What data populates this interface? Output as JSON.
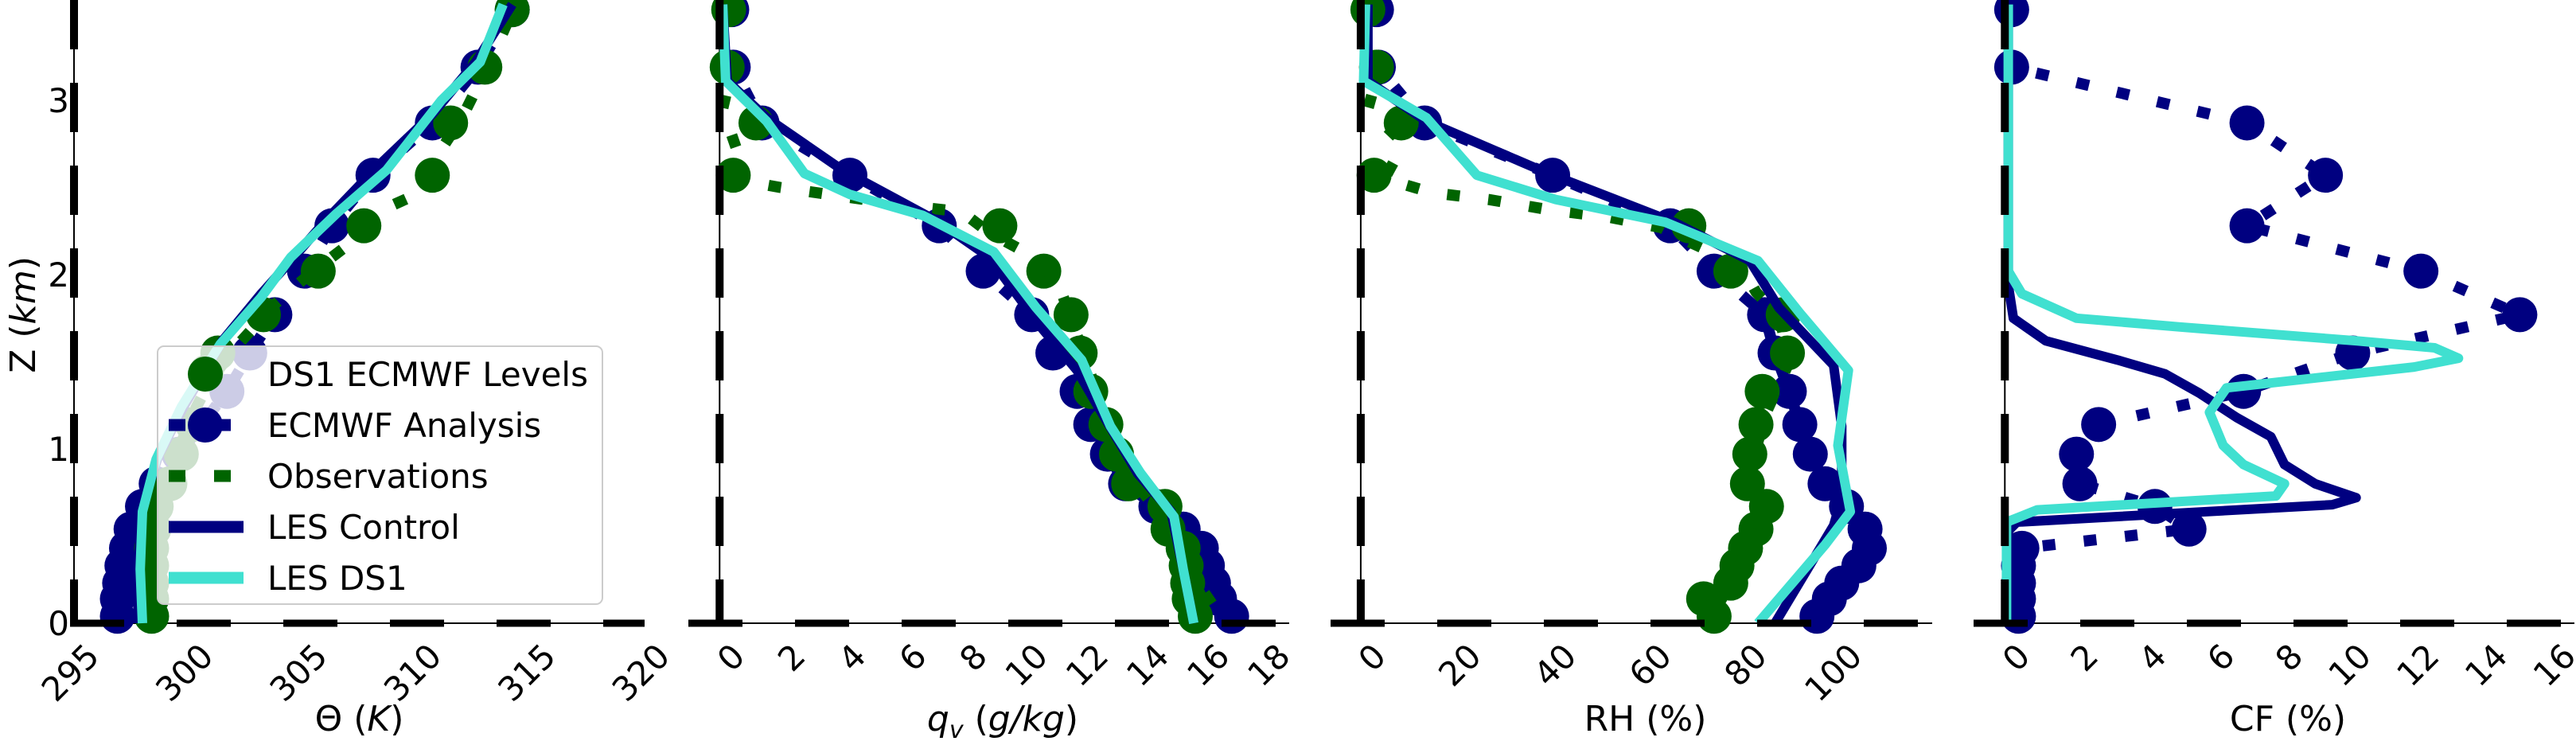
{
  "colors": {
    "ecmwf_analysis": "#000080",
    "ds1_levels": "#006400",
    "observations": "#006400",
    "les_control": "#000080",
    "les_ds1": "#40E0D0",
    "reference_lines": "#000000"
  },
  "legend": {
    "location": "lower-right of first panel",
    "entries": [
      {
        "key": "ds1_levels",
        "label": "DS1 ECMWF Levels"
      },
      {
        "key": "ecmwf_analysis",
        "label": "ECMWF Analysis"
      },
      {
        "key": "observations",
        "label": "Observations"
      },
      {
        "key": "les_control",
        "label": "LES Control"
      },
      {
        "key": "les_ds1",
        "label": "LES DS1"
      }
    ]
  },
  "chart_data": [
    {
      "type": "line",
      "xlabel": {
        "symbol": "Θ",
        "unit": "K",
        "italic_unit": true
      },
      "ylabel": {
        "symbol": "Z",
        "unit": "km",
        "italic_unit": true
      },
      "xlim": [
        295,
        320
      ],
      "ylim": [
        0,
        3.57
      ],
      "xticks": [
        "295",
        "300",
        "305",
        "310",
        "315",
        "320"
      ],
      "yticks": [
        "0",
        "1",
        "2",
        "3"
      ],
      "grid": false,
      "series": {
        "ecmwf_analysis": {
          "z": [
            3.52,
            3.19,
            2.87,
            2.57,
            2.28,
            2.02,
            1.77,
            1.55,
            1.33,
            1.14,
            0.97,
            0.8,
            0.67,
            0.54,
            0.43,
            0.33,
            0.23,
            0.14,
            0.04
          ],
          "x": [
            314.2,
            312.7,
            310.7,
            308.1,
            306.3,
            305.1,
            303.8,
            302.7,
            301.7,
            300.6,
            299.6,
            298.6,
            298.0,
            297.5,
            297.3,
            297.1,
            297.0,
            296.9,
            296.9
          ]
        },
        "ds1_levels": {
          "z": [
            3.52,
            3.19,
            2.87,
            2.57,
            2.28,
            2.02,
            1.77,
            1.55,
            1.44,
            1.14,
            0.97,
            0.8,
            0.67,
            0.54,
            0.43,
            0.33,
            0.23,
            0.14,
            0.04
          ],
          "x": [
            314.2,
            313.0,
            311.5,
            310.7,
            307.7,
            305.7,
            303.3,
            301.3,
            300.8,
            300.2,
            299.7,
            299.2,
            298.6,
            298.5,
            298.4,
            298.4,
            298.4,
            298.4,
            298.4
          ]
        },
        "observations": {
          "z": [
            3.45,
            3.33,
            3.11,
            2.9,
            2.7,
            2.46,
            2.36,
            2.17,
            2.0,
            1.83,
            1.6,
            1.4,
            1.2,
            1.0,
            0.8,
            0.6,
            0.4,
            0.2,
            0.0
          ],
          "x": [
            314.0,
            313.6,
            312.8,
            312.0,
            311.0,
            310.0,
            308.3,
            307.0,
            305.3,
            303.8,
            302.2,
            301.0,
            300.2,
            299.6,
            299.0,
            298.6,
            298.4,
            298.4,
            298.5
          ]
        },
        "les_control": {
          "z": [
            3.55,
            3.22,
            2.92,
            2.62,
            2.32,
            2.08,
            1.89,
            1.62,
            1.24,
            0.96,
            0.67,
            0.3,
            0
          ],
          "x": [
            314.2,
            312.6,
            310.7,
            308.3,
            306.1,
            304.5,
            303.2,
            301.5,
            299.8,
            298.7,
            298.0,
            297.8,
            297.8
          ]
        },
        "les_ds1": {
          "z": [
            3.55,
            3.22,
            3.0,
            2.6,
            2.35,
            2.1,
            1.87,
            1.6,
            1.24,
            0.94,
            0.64,
            0.31,
            0
          ],
          "x": [
            313.8,
            312.8,
            311.1,
            308.7,
            306.5,
            304.5,
            303.2,
            301.4,
            299.7,
            298.6,
            298.0,
            297.9,
            298.0
          ]
        }
      }
    },
    {
      "type": "line",
      "xlabel": {
        "symbol": "q",
        "subscript": "v",
        "unit": "g/kg",
        "italic_unit": true
      },
      "xlim": [
        -0.9,
        18.8
      ],
      "ylim": [
        0,
        3.57
      ],
      "xticks": [
        "0",
        "2",
        "4",
        "6",
        "8",
        "10",
        "12",
        "14",
        "16",
        "18"
      ],
      "grid": false,
      "series": {
        "ecmwf_analysis": {
          "z": [
            3.52,
            3.19,
            2.87,
            2.57,
            2.28,
            2.02,
            1.77,
            1.55,
            1.33,
            1.14,
            0.97,
            0.8,
            0.67,
            0.54,
            0.43,
            0.33,
            0.23,
            0.14,
            0.04
          ],
          "x": [
            0.4,
            0.45,
            1.4,
            4.3,
            7.25,
            8.7,
            10.3,
            11.0,
            11.8,
            12.25,
            12.8,
            13.4,
            14.4,
            15.3,
            15.9,
            16.1,
            16.3,
            16.5,
            16.9
          ]
        },
        "ds1_levels": {
          "z": [
            3.52,
            3.19,
            2.87,
            2.57,
            2.28,
            2.02,
            1.77,
            1.55,
            1.33,
            1.14,
            0.97,
            0.8,
            0.67,
            0.54,
            0.43,
            0.33,
            0.23,
            0.14,
            0.04
          ],
          "x": [
            0.3,
            0.25,
            1.2,
            0.45,
            9.25,
            10.7,
            11.6,
            11.9,
            12.25,
            12.75,
            13.1,
            13.5,
            14.7,
            14.8,
            15.3,
            15.4,
            15.45,
            15.5,
            15.7
          ]
        },
        "observations": {
          "z": [
            3.5,
            3.1,
            2.95,
            2.7,
            2.55,
            2.5,
            2.45,
            2.4,
            2.36,
            2.24,
            2.1,
            1.94,
            1.6,
            1.2,
            0.9,
            0.7,
            0.5,
            0.3,
            0.1,
            0.03
          ],
          "x": [
            0.3,
            0.3,
            0.1,
            0.6,
            0.4,
            2,
            4,
            6,
            8,
            8.9,
            10.4,
            11.2,
            11.9,
            12.7,
            13.3,
            14.2,
            15.0,
            15.5,
            16.3,
            16.5
          ]
        },
        "les_control": {
          "z": [
            3.55,
            3.11,
            2.9,
            2.6,
            2.3,
            2.1,
            1.7,
            1.45,
            1.24,
            0.86,
            0.64,
            0.31,
            0
          ],
          "x": [
            0.1,
            0.25,
            1.55,
            4.05,
            7.25,
            8.9,
            10.6,
            11.8,
            12.5,
            13.8,
            14.9,
            15.3,
            15.65
          ]
        },
        "les_ds1": {
          "z": [
            3.55,
            3.11,
            2.88,
            2.58,
            2.46,
            2.34,
            2.13,
            1.81,
            1.51,
            1.13,
            0.86,
            0.61,
            0.31,
            0
          ],
          "x": [
            0.1,
            0.2,
            1.55,
            2.8,
            4.3,
            6.7,
            9.05,
            10.45,
            11.95,
            12.9,
            13.9,
            15.0,
            15.3,
            15.65
          ]
        }
      }
    },
    {
      "type": "line",
      "xlabel": {
        "symbol": "RH",
        "unit": "%",
        "italic_unit": false
      },
      "xlim": [
        -5.5,
        120
      ],
      "ylim": [
        0,
        3.57
      ],
      "xticks": [
        "0",
        "20",
        "40",
        "60",
        "80",
        "100"
      ],
      "grid": false,
      "series": {
        "ecmwf_analysis": {
          "z": [
            3.52,
            3.19,
            2.87,
            2.57,
            2.28,
            2.02,
            1.77,
            1.55,
            1.33,
            1.14,
            0.97,
            0.8,
            0.67,
            0.54,
            0.43,
            0.33,
            0.23,
            0.14,
            0.04
          ],
          "x": [
            3.3,
            3.7,
            13.4,
            40.3,
            65,
            74.2,
            84.8,
            87,
            90,
            92.2,
            94.4,
            97.5,
            102,
            105.9,
            106.8,
            104.6,
            101,
            98.4,
            95.8
          ]
        },
        "ds1_levels": {
          "z": [
            3.52,
            3.19,
            2.87,
            2.57,
            2.28,
            2.02,
            1.77,
            1.55,
            1.33,
            1.14,
            0.97,
            0.8,
            0.67,
            0.54,
            0.43,
            0.33,
            0.23,
            0.14,
            0.04
          ],
          "x": [
            1.5,
            3.3,
            8.5,
            2.8,
            68.9,
            77.7,
            88.7,
            89.6,
            84.3,
            83,
            81.7,
            81.2,
            85.2,
            83,
            80.8,
            79,
            77.7,
            72,
            74.2
          ]
        },
        "observations": {
          "z": [
            3.5,
            3.1,
            2.95,
            2.78,
            2.7,
            2.55,
            2.47,
            2.43,
            2.37,
            2.33,
            2.27,
            2.2,
            2.05,
            1.9,
            1.75,
            1.5,
            1.2,
            0.9,
            0.6,
            0.3,
            0.05
          ],
          "x": [
            2,
            3,
            1.5,
            8,
            8,
            5,
            15,
            27,
            40,
            52,
            63,
            68,
            80,
            83,
            88,
            90,
            85,
            82,
            84,
            79,
            74
          ]
        },
        "les_control": {
          "z": [
            3.55,
            3.11,
            2.88,
            2.58,
            2.3,
            2.08,
            1.81,
            1.48,
            1.13,
            0.72,
            0.56,
            0
          ],
          "x": [
            1.5,
            1.5,
            13.8,
            39.4,
            65.8,
            81.7,
            87.8,
            99.3,
            101,
            101,
            99.3,
            87
          ]
        },
        "les_ds1": {
          "z": [
            3.55,
            3.11,
            2.9,
            2.57,
            2.43,
            2.3,
            2.08,
            1.78,
            1.45,
            1.02,
            0.64,
            0.45,
            0
          ],
          "x": [
            1,
            0.6,
            13.8,
            24.4,
            41,
            64,
            83.4,
            92.2,
            102.4,
            100.2,
            102.8,
            97.5,
            83.4
          ]
        }
      }
    },
    {
      "type": "line",
      "xlabel": {
        "symbol": "CF",
        "unit": "%",
        "italic_unit": false
      },
      "xlim": [
        -0.8,
        16.7
      ],
      "ylim": [
        0,
        3.57
      ],
      "xticks": [
        "0",
        "2",
        "4",
        "6",
        "8",
        "10",
        "12",
        "14",
        "16"
      ],
      "grid": false,
      "series": {
        "ecmwf_analysis": {
          "z": [
            3.52,
            3.19,
            2.87,
            2.57,
            2.28,
            2.02,
            1.77,
            1.55,
            1.33,
            1.14,
            0.97,
            0.8,
            0.67,
            0.54,
            0.43,
            0.33,
            0.23,
            0.14,
            0.04
          ],
          "x": [
            0.2,
            0.2,
            7.1,
            9.4,
            7.1,
            12.2,
            15.1,
            10.2,
            7.0,
            2.75,
            2.1,
            2.2,
            4.4,
            5.4,
            0.5,
            0.4,
            0.4,
            0.4,
            0.4
          ]
        },
        "les_control": {
          "z": [
            3.55,
            1.94,
            1.75,
            1.62,
            1.51,
            1.43,
            1.32,
            1.18,
            1.07,
            0.91,
            0.8,
            0.72,
            0.68,
            0.58,
            0.53,
            0
          ],
          "x": [
            0.1,
            0.1,
            0.25,
            1.2,
            3.3,
            4.7,
            5.7,
            6.8,
            7.8,
            8.2,
            9.1,
            10.3,
            9.6,
            0.35,
            0.1,
            0.1
          ]
        },
        "les_ds1": {
          "z": [
            3.55,
            2.02,
            1.89,
            1.75,
            1.7,
            1.62,
            1.58,
            1.52,
            1.47,
            1.35,
            1.21,
            1.02,
            0.91,
            0.8,
            0.73,
            0.65,
            0.58,
            0
          ],
          "x": [
            0.1,
            0.1,
            0.5,
            2.1,
            5.1,
            10.3,
            12.6,
            13.3,
            12.0,
            6.5,
            6.0,
            6.4,
            7.0,
            8.2,
            7.95,
            0.95,
            0.05,
            0.05
          ]
        }
      }
    }
  ]
}
